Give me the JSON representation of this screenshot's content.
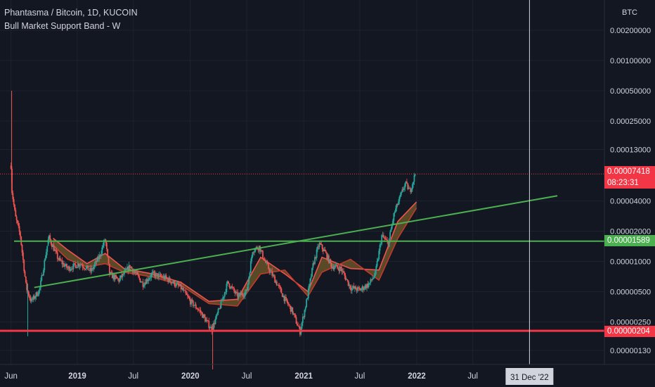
{
  "legend": {
    "title": "Phantasma / Bitcoin, 1D, KUCOIN",
    "indicator": "Bull Market Support Band - W"
  },
  "currency": "BTC",
  "price": {
    "last": "0.00007418",
    "countdown": "08:23:31",
    "support_green": "0.00001589",
    "support_red": "0.00000204"
  },
  "crosshair_date": "31 Dec '22",
  "colors": {
    "background": "#131722",
    "grid": "#1e2230",
    "text": "#d1d4dc",
    "up": "#26a69a",
    "down": "#ef5350",
    "band_fill": "#8a6a2a",
    "trendline": "#4caf50",
    "support_red": "#f23645"
  },
  "chart_data": {
    "type": "candlestick",
    "scale": "log",
    "y_ticks": [
      "0.00200000",
      "0.00100000",
      "0.00050000",
      "0.00025000",
      "0.00013000",
      "0.00004000",
      "0.00002000",
      "0.00001000",
      "0.00000500",
      "0.00000250",
      "0.00000130"
    ],
    "y_tick_values": [
      0.002,
      0.001,
      0.0005,
      0.00025,
      0.00013,
      4e-05,
      2e-05,
      1e-05,
      5e-06,
      2.5e-06,
      1.3e-06
    ],
    "x_ticks": [
      "Jun",
      "2019",
      "Jul",
      "2020",
      "Jul",
      "2021",
      "Jul",
      "2022",
      "Jul"
    ],
    "price_path": [
      [
        "2018-06-01",
        9e-05
      ],
      [
        "2018-06-04",
        5e-05
      ],
      [
        "2018-06-15",
        2.8e-05
      ],
      [
        "2018-07-01",
        1.8e-05
      ],
      [
        "2018-07-20",
        5.5e-06
      ],
      [
        "2018-08-05",
        4e-06
      ],
      [
        "2018-09-01",
        5.2e-06
      ],
      [
        "2018-10-01",
        1.75e-05
      ],
      [
        "2018-11-01",
        1.05e-05
      ],
      [
        "2018-12-01",
        8.5e-06
      ],
      [
        "2019-01-10",
        9.5e-06
      ],
      [
        "2019-02-15",
        8e-06
      ],
      [
        "2019-03-15",
        1.15e-05
      ],
      [
        "2019-04-01",
        1.7e-05
      ],
      [
        "2019-04-15",
        7.5e-06
      ],
      [
        "2019-05-15",
        6.5e-06
      ],
      [
        "2019-06-20",
        9e-06
      ],
      [
        "2019-08-01",
        6e-06
      ],
      [
        "2019-09-01",
        7.5e-06
      ],
      [
        "2019-10-15",
        6.8e-06
      ],
      [
        "2019-12-01",
        5.5e-06
      ],
      [
        "2020-01-01",
        4e-06
      ],
      [
        "2020-02-01",
        3.2e-06
      ],
      [
        "2020-03-10",
        2.1e-06
      ],
      [
        "2020-04-01",
        3.2e-06
      ],
      [
        "2020-05-01",
        6.2e-06
      ],
      [
        "2020-06-01",
        4.5e-06
      ],
      [
        "2020-07-01",
        5e-06
      ],
      [
        "2020-07-20",
        1.3e-05
      ],
      [
        "2020-08-10",
        1.4e-05
      ],
      [
        "2020-09-01",
        9.5e-06
      ],
      [
        "2020-10-01",
        6.5e-06
      ],
      [
        "2020-11-01",
        4.2e-06
      ],
      [
        "2020-11-25",
        3.2e-06
      ],
      [
        "2020-12-20",
        2e-06
      ],
      [
        "2021-01-10",
        4e-06
      ],
      [
        "2021-02-01",
        9.5e-06
      ],
      [
        "2021-02-20",
        1.5e-05
      ],
      [
        "2021-03-10",
        1.25e-05
      ],
      [
        "2021-04-01",
        9e-06
      ],
      [
        "2021-05-01",
        8.5e-06
      ],
      [
        "2021-06-01",
        5.5e-06
      ],
      [
        "2021-07-01",
        5.2e-06
      ],
      [
        "2021-08-01",
        6e-06
      ],
      [
        "2021-08-20",
        7.5e-06
      ],
      [
        "2021-09-10",
        1.8e-05
      ],
      [
        "2021-10-01",
        1.5e-05
      ],
      [
        "2021-10-20",
        3e-05
      ],
      [
        "2021-11-10",
        4.5e-05
      ],
      [
        "2021-11-25",
        6e-05
      ],
      [
        "2021-12-10",
        5e-05
      ],
      [
        "2021-12-27",
        7.418e-05
      ]
    ],
    "band_upper": [
      [
        "2018-10-15",
        1.7e-05
      ],
      [
        "2018-12-01",
        1.3e-05
      ],
      [
        "2019-02-01",
        9.5e-06
      ],
      [
        "2019-04-01",
        1.2e-05
      ],
      [
        "2019-06-01",
        8.5e-06
      ],
      [
        "2019-09-01",
        7.5e-06
      ],
      [
        "2019-12-01",
        6.2e-06
      ],
      [
        "2020-03-01",
        4e-06
      ],
      [
        "2020-06-01",
        4.2e-06
      ],
      [
        "2020-08-15",
        1.1e-05
      ],
      [
        "2020-11-01",
        7.5e-06
      ],
      [
        "2021-01-15",
        5e-06
      ],
      [
        "2021-03-01",
        1.1e-05
      ],
      [
        "2021-06-01",
        8.5e-06
      ],
      [
        "2021-09-01",
        8.2e-06
      ],
      [
        "2021-11-01",
        2.5e-05
      ],
      [
        "2021-12-31",
        3.9e-05
      ]
    ],
    "band_lower": [
      [
        "2018-10-15",
        1.45e-05
      ],
      [
        "2018-12-01",
        1.05e-05
      ],
      [
        "2019-02-01",
        8.8e-06
      ],
      [
        "2019-04-01",
        9.5e-06
      ],
      [
        "2019-06-01",
        7.8e-06
      ],
      [
        "2019-09-01",
        7e-06
      ],
      [
        "2019-12-01",
        5.8e-06
      ],
      [
        "2020-03-01",
        3.8e-06
      ],
      [
        "2020-06-01",
        3.6e-06
      ],
      [
        "2020-08-15",
        7.5e-06
      ],
      [
        "2020-11-01",
        8.2e-06
      ],
      [
        "2021-01-15",
        4.5e-06
      ],
      [
        "2021-03-01",
        7.8e-06
      ],
      [
        "2021-06-01",
        1.05e-05
      ],
      [
        "2021-09-01",
        6.5e-06
      ],
      [
        "2021-11-01",
        1.7e-05
      ],
      [
        "2021-12-31",
        3.4e-05
      ]
    ],
    "trendline": [
      [
        "2018-08-15",
        5.5e-06
      ],
      [
        "2023-03-31",
        4.5e-05
      ]
    ],
    "horizontal_levels": [
      1.589e-05,
      2.04e-06
    ],
    "crosshair": "2022-12-31"
  }
}
